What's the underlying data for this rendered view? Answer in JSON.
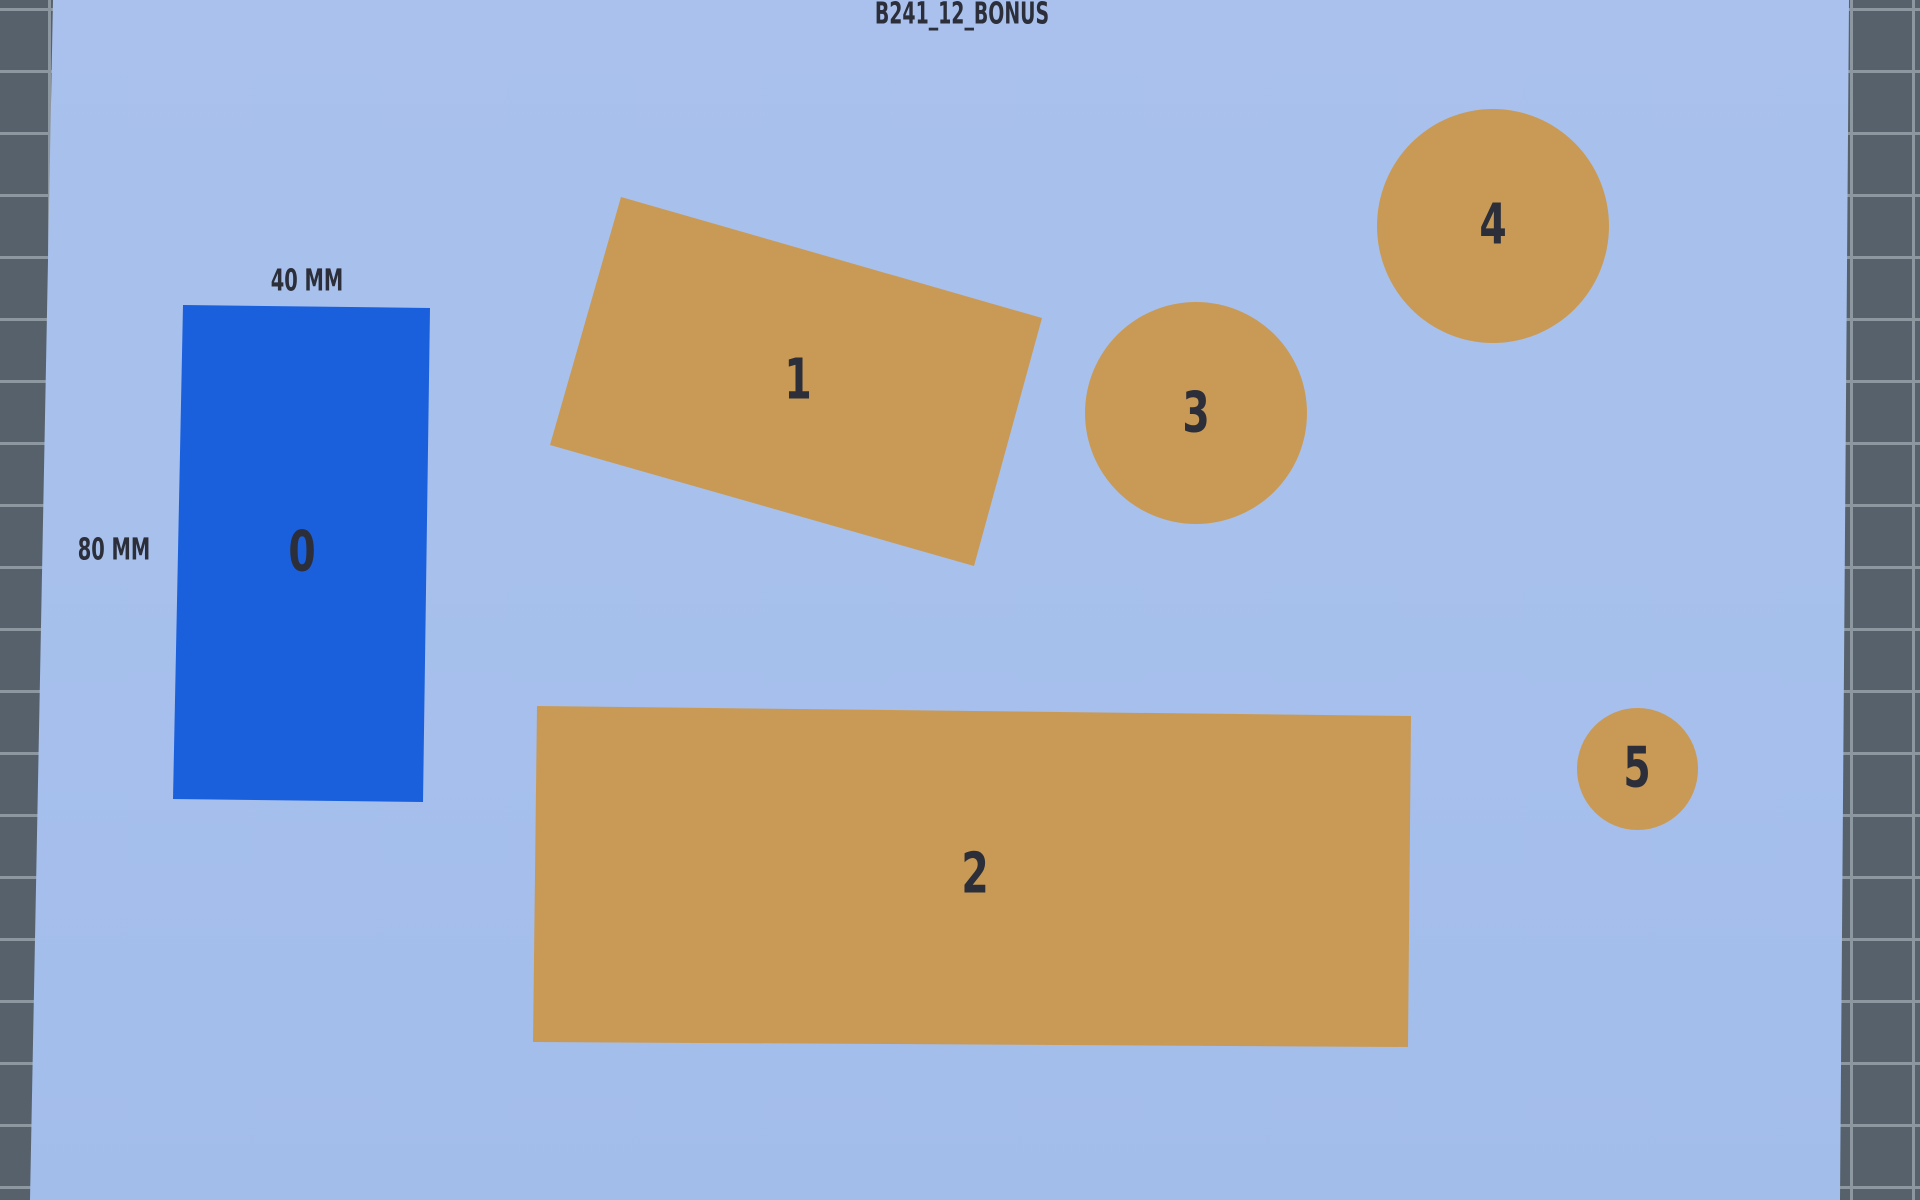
{
  "sheet": {
    "title": "B241_12_BONUS",
    "dimension_width": "40 MM",
    "dimension_height": "80 MM"
  },
  "shapes": [
    {
      "id": "0",
      "kind": "rectangle",
      "color": "#1a5fdb"
    },
    {
      "id": "1",
      "kind": "rotated-rectangle",
      "color": "#c99a55"
    },
    {
      "id": "2",
      "kind": "rectangle",
      "color": "#c99a55"
    },
    {
      "id": "3",
      "kind": "circle",
      "color": "#c99a55"
    },
    {
      "id": "4",
      "kind": "circle",
      "color": "#c99a55"
    },
    {
      "id": "5",
      "kind": "circle",
      "color": "#c99a55"
    }
  ],
  "colors": {
    "paper": "#a7c0ec",
    "reference_shape": "#1a5fdb",
    "target_shapes": "#c99a55",
    "mat": "#4b5560"
  }
}
